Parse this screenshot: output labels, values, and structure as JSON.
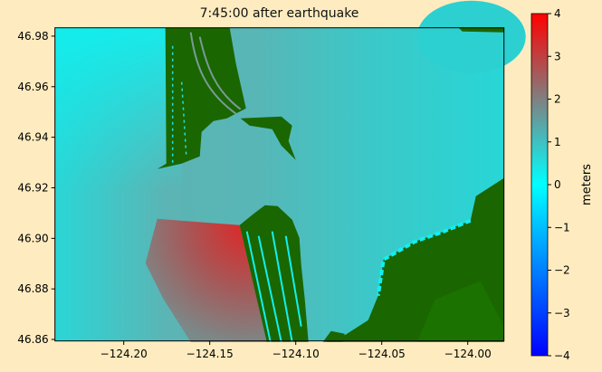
{
  "chart_data": {
    "type": "heatmap",
    "title": "7:45:00 after earthquake",
    "xlim": [
      -124.24,
      -123.979
    ],
    "ylim": [
      46.8593,
      46.9833
    ],
    "xticks": [
      -124.2,
      -124.15,
      -124.1,
      -124.05,
      -124.0
    ],
    "xtick_labels": [
      "−124.20",
      "−124.15",
      "−124.10",
      "−124.05",
      "−124.00"
    ],
    "yticks": [
      46.86,
      46.88,
      46.9,
      46.92,
      46.94,
      46.96,
      46.98
    ],
    "ytick_labels": [
      "46.86",
      "46.88",
      "46.90",
      "46.92",
      "46.94",
      "46.96",
      "46.98"
    ],
    "colorbar": {
      "label": "meters",
      "range": [
        -4,
        4
      ],
      "ticks": [
        -4,
        -3,
        -2,
        -1,
        0,
        1,
        2,
        3,
        4
      ],
      "tick_labels": [
        "−4",
        "−3",
        "−2",
        "−1",
        "0",
        "1",
        "2",
        "3",
        "4"
      ],
      "colormap": [
        "#0000ff",
        "#00ffff",
        "#808080",
        "#ff0000"
      ]
    },
    "colors": {
      "land": "#1a6600",
      "water": "#20dada",
      "background": "#feecc0"
    }
  }
}
